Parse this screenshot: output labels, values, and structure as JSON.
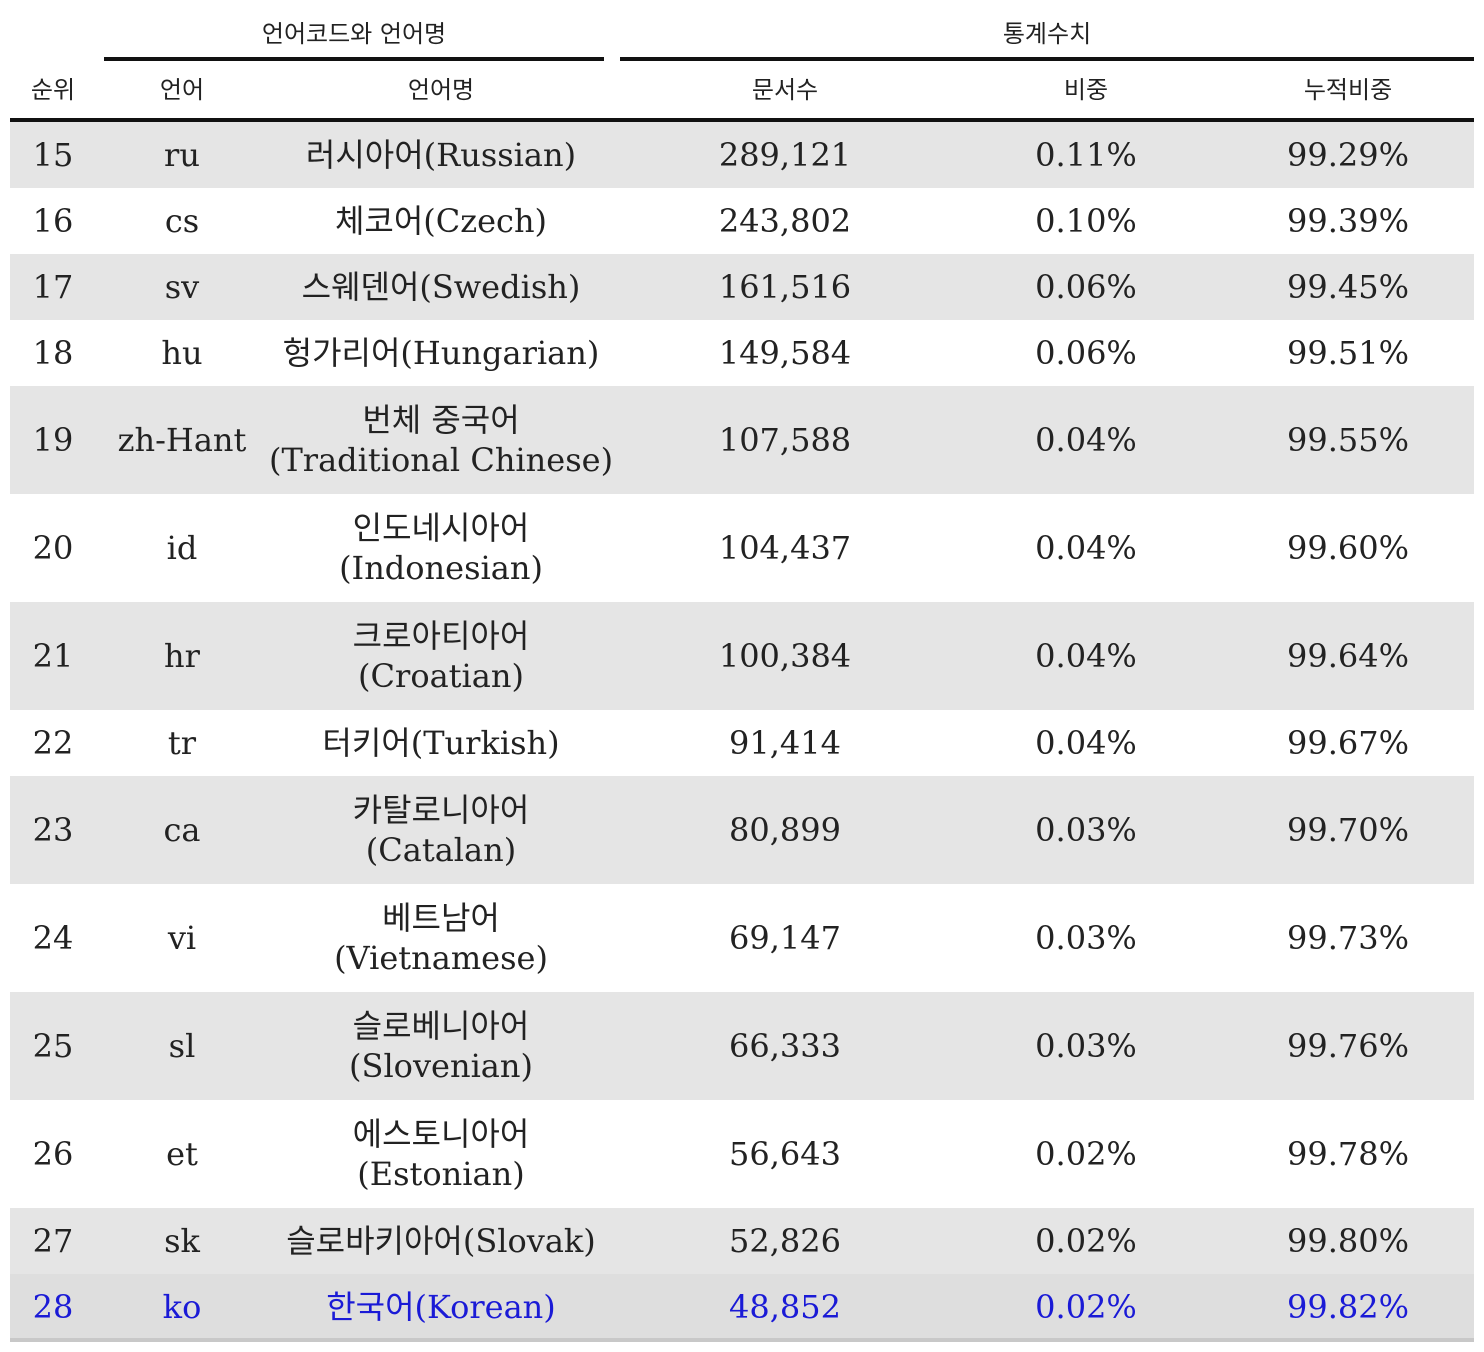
{
  "group_headers": {
    "language": "언어코드와 언어명",
    "stats": "통계수치"
  },
  "columns": {
    "rank": "순위",
    "code": "언어",
    "name": "언어명",
    "docs": "문서수",
    "ratio": "비중",
    "cumulative": "누적비중"
  },
  "highlight_color": "#1a1ad6",
  "rows": [
    {
      "rank": "15",
      "code": "ru",
      "name": "러시아어(Russian)",
      "docs": "289,121",
      "ratio": "0.11%",
      "cumulative": "99.29%"
    },
    {
      "rank": "16",
      "code": "cs",
      "name": "체코어(Czech)",
      "docs": "243,802",
      "ratio": "0.10%",
      "cumulative": "99.39%"
    },
    {
      "rank": "17",
      "code": "sv",
      "name": "스웨덴어(Swedish)",
      "docs": "161,516",
      "ratio": "0.06%",
      "cumulative": "99.45%"
    },
    {
      "rank": "18",
      "code": "hu",
      "name": "헝가리어(Hungarian)",
      "docs": "149,584",
      "ratio": "0.06%",
      "cumulative": "99.51%"
    },
    {
      "rank": "19",
      "code": "zh-Hant",
      "name": "번체 중국어\n(Traditional Chinese)",
      "docs": "107,588",
      "ratio": "0.04%",
      "cumulative": "99.55%"
    },
    {
      "rank": "20",
      "code": "id",
      "name": "인도네시아어\n(Indonesian)",
      "docs": "104,437",
      "ratio": "0.04%",
      "cumulative": "99.60%"
    },
    {
      "rank": "21",
      "code": "hr",
      "name": "크로아티아어\n(Croatian)",
      "docs": "100,384",
      "ratio": "0.04%",
      "cumulative": "99.64%"
    },
    {
      "rank": "22",
      "code": "tr",
      "name": "터키어(Turkish)",
      "docs": "91,414",
      "ratio": "0.04%",
      "cumulative": "99.67%"
    },
    {
      "rank": "23",
      "code": "ca",
      "name": "카탈로니아어\n(Catalan)",
      "docs": "80,899",
      "ratio": "0.03%",
      "cumulative": "99.70%"
    },
    {
      "rank": "24",
      "code": "vi",
      "name": "베트남어\n(Vietnamese)",
      "docs": "69,147",
      "ratio": "0.03%",
      "cumulative": "99.73%"
    },
    {
      "rank": "25",
      "code": "sl",
      "name": "슬로베니아어\n(Slovenian)",
      "docs": "66,333",
      "ratio": "0.03%",
      "cumulative": "99.76%"
    },
    {
      "rank": "26",
      "code": "et",
      "name": "에스토니아어\n(Estonian)",
      "docs": "56,643",
      "ratio": "0.02%",
      "cumulative": "99.78%"
    },
    {
      "rank": "27",
      "code": "sk",
      "name": "슬로바키아어(Slovak)",
      "docs": "52,826",
      "ratio": "0.02%",
      "cumulative": "99.80%"
    },
    {
      "rank": "28",
      "code": "ko",
      "name": "한국어(Korean)",
      "docs": "48,852",
      "ratio": "0.02%",
      "cumulative": "99.82%",
      "highlight": true
    }
  ]
}
